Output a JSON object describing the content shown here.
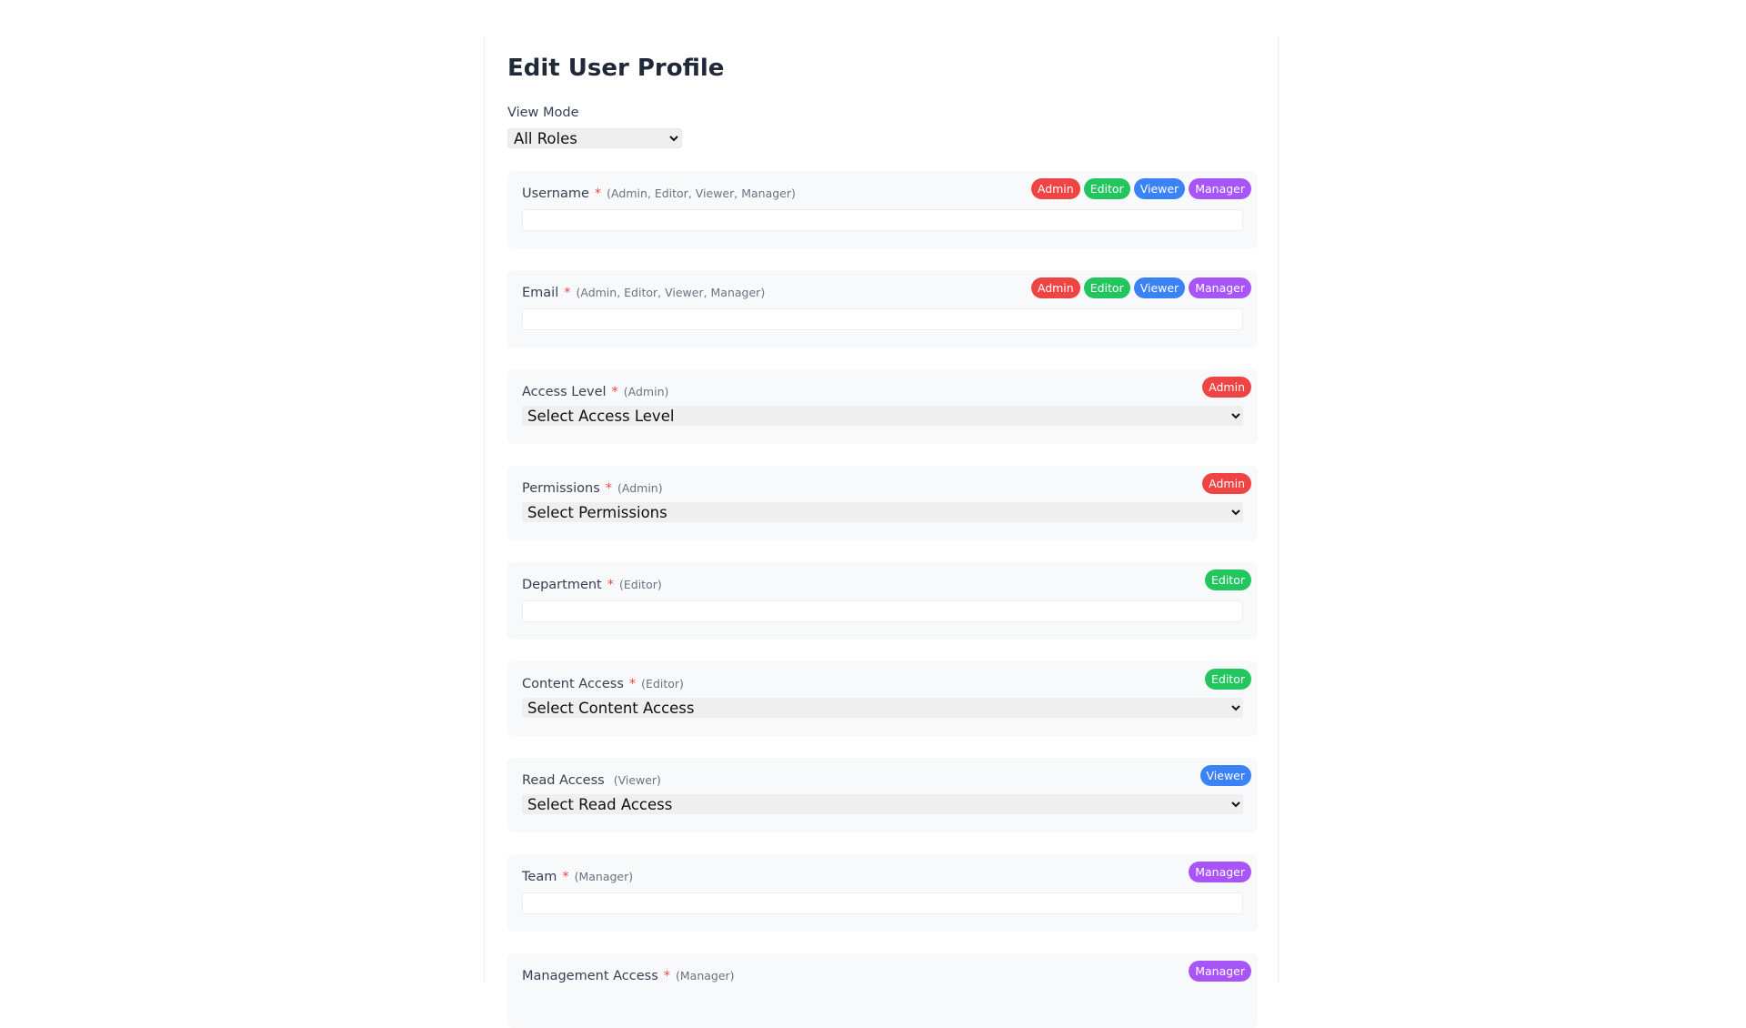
{
  "page": {
    "title": "Edit User Profile",
    "view_mode_label": "View Mode",
    "view_mode_value": "All Roles"
  },
  "roles": {
    "admin": "Admin",
    "editor": "Editor",
    "viewer": "Viewer",
    "manager": "Manager"
  },
  "colors": {
    "admin": "#ef4444",
    "editor": "#22c55e",
    "viewer": "#3b82f6",
    "manager": "#a855f7",
    "required": "#ef4444"
  },
  "fields": {
    "username": {
      "label": "Username",
      "required": "*",
      "hint": "(Admin, Editor, Viewer, Manager)",
      "value": ""
    },
    "email": {
      "label": "Email",
      "required": "*",
      "hint": "(Admin, Editor, Viewer, Manager)",
      "value": ""
    },
    "access_level": {
      "label": "Access Level",
      "required": "*",
      "hint": "(Admin)",
      "value": "Select Access Level"
    },
    "permissions": {
      "label": "Permissions",
      "required": "*",
      "hint": "(Admin)",
      "value": "Select Permissions"
    },
    "department": {
      "label": "Department",
      "required": "*",
      "hint": "(Editor)",
      "value": ""
    },
    "content_access": {
      "label": "Content Access",
      "required": "*",
      "hint": "(Editor)",
      "value": "Select Content Access"
    },
    "read_access": {
      "label": "Read Access",
      "hint": "(Viewer)",
      "value": "Select Read Access"
    },
    "team": {
      "label": "Team",
      "required": "*",
      "hint": "(Manager)",
      "value": ""
    },
    "management_access": {
      "label": "Management Access",
      "required": "*",
      "hint": "(Manager)"
    }
  }
}
